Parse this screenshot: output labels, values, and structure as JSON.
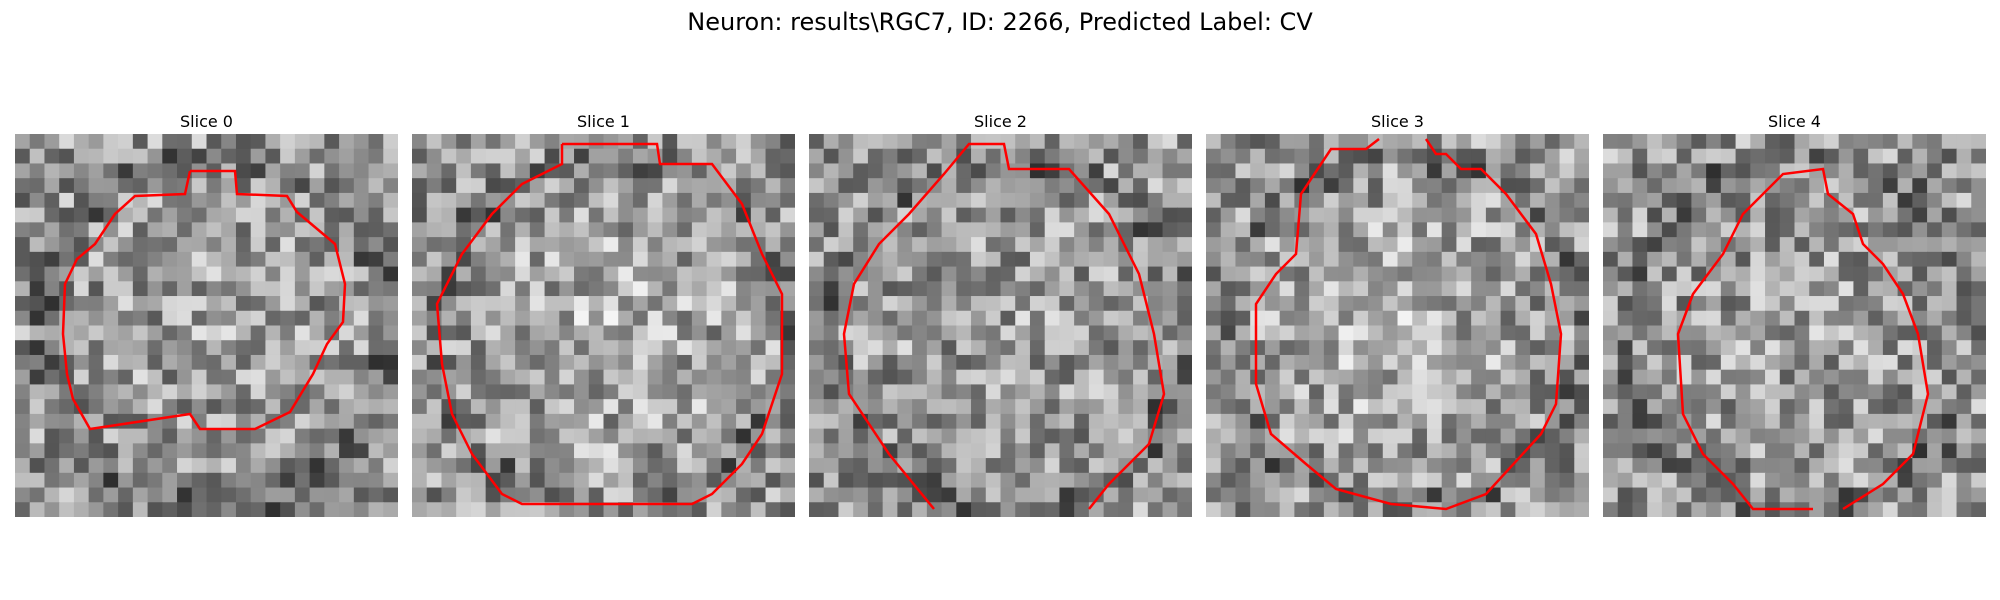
{
  "figure": {
    "title": "Neuron: results\\RGC7, ID: 2266, Predicted Label: CV"
  },
  "colors": {
    "contour": "#ff0000",
    "background": "#ffffff"
  },
  "panels": [
    {
      "title": "Slice 0"
    },
    {
      "title": "Slice 1"
    },
    {
      "title": "Slice 2"
    },
    {
      "title": "Slice 3"
    },
    {
      "title": "Slice 4"
    }
  ]
}
